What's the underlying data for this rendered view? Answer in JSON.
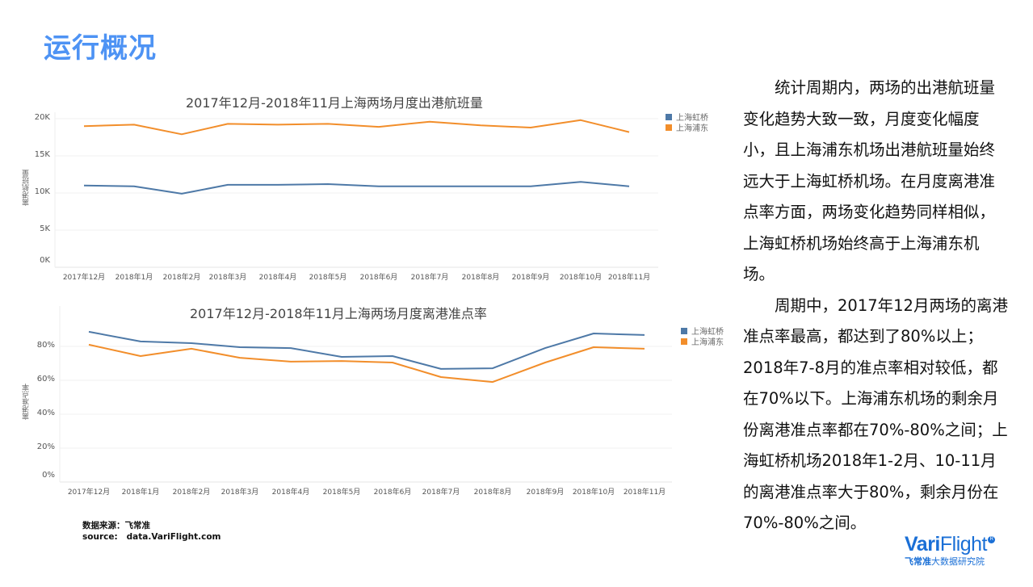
{
  "page": {
    "title": "运行概况"
  },
  "source": {
    "line1": "数据来源：飞常准",
    "line2": "source:   data.VariFlight.com"
  },
  "text_panel": {
    "paragraphs": [
      "统计周期内，两场的出港航班量变化趋势大致一致，月度变化幅度小，且上海浦东机场出港航班量始终远大于上海虹桥机场。在月度离港准点率方面，两场变化趋势同样相似，上海虹桥机场始终高于上海浦东机场。",
      "周期中，2017年12月两场的离港准点率最高，都达到了80%以上；2018年7-8月的准点率相对较低，都在70%以下。上海浦东机场的剩余月份离港准点率都在70%-80%之间；上海虹桥机场2018年1-2月、10-11月的离港准点率大于80%，剩余月份在70%-80%之间。"
    ]
  },
  "logo": {
    "brand_bold": "Vari",
    "brand_rest": "Flight",
    "registered": "R",
    "sub_bold": "飞常准",
    "sub_rest": "大数据研究院"
  },
  "colors": {
    "title": "#4e93f4",
    "hongqiao": "#4e79a7",
    "pudong": "#f28e2b",
    "grid": "#f0f0f0"
  },
  "chart_data": [
    {
      "type": "line",
      "title": "2017年12月-2018年11月上海两场月度出港航班量",
      "xlabel": "",
      "ylabel": "离港航班量",
      "ylim": [
        0,
        20000
      ],
      "yticks": [
        "0K",
        "5K",
        "10K",
        "15K",
        "20K"
      ],
      "grid": true,
      "legend_position": "right",
      "categories": [
        "2017年12月",
        "2018年1月",
        "2018年2月",
        "2018年3月",
        "2018年4月",
        "2018年5月",
        "2018年6月",
        "2018年7月",
        "2018年8月",
        "2018年9月",
        "2018年10月",
        "2018年11月"
      ],
      "series": [
        {
          "name": "上海虹桥",
          "color": "#4e79a7",
          "values": [
            11000,
            10900,
            9900,
            11100,
            11100,
            11200,
            10900,
            10900,
            10900,
            10900,
            11500,
            10900
          ]
        },
        {
          "name": "上海浦东",
          "color": "#f28e2b",
          "values": [
            19000,
            19200,
            17900,
            19300,
            19200,
            19300,
            18900,
            19600,
            19100,
            18800,
            19800,
            18200
          ]
        }
      ]
    },
    {
      "type": "line",
      "title": "2017年12月-2018年11月上海两场月度离港准点率",
      "xlabel": "",
      "ylabel": "离港准点率",
      "ylim": [
        0,
        100
      ],
      "yticks": [
        "0%",
        "20%",
        "40%",
        "60%",
        "80%"
      ],
      "grid": true,
      "legend_position": "right",
      "categories": [
        "2017年12月",
        "2018年1月",
        "2018年2月",
        "2018年3月",
        "2018年4月",
        "2018年5月",
        "2018年6月",
        "2018年7月",
        "2018年8月",
        "2018年9月",
        "2018年10月",
        "2018年11月"
      ],
      "series": [
        {
          "name": "上海虹桥",
          "color": "#4e79a7",
          "values": [
            88.6,
            82.9,
            81.9,
            79.5,
            79.0,
            73.8,
            74.3,
            66.7,
            67.1,
            79.0,
            87.6,
            86.7
          ]
        },
        {
          "name": "上海浦东",
          "color": "#f28e2b",
          "values": [
            81.0,
            74.3,
            78.6,
            73.3,
            71.0,
            71.4,
            70.5,
            61.9,
            59.0,
            70.5,
            79.5,
            78.6
          ]
        }
      ]
    }
  ]
}
